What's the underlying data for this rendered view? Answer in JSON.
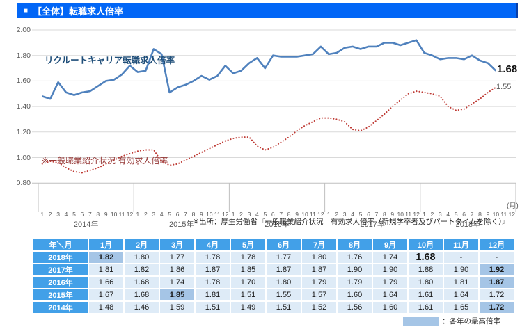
{
  "header": {
    "bullet": "■",
    "title": "【全体】転職求人倍率"
  },
  "chart": {
    "series1_label": "リクルートキャリア転職求人倍率",
    "series2_label": "※一般職業紹介状況 有効求人倍率",
    "end_label_recruit": "1.68",
    "end_label_mhlw": "1.55",
    "month_unit_label": "(月)",
    "source_note": "※出所：厚生労働省『一般職業紹介状況　有効求人倍率（新規学卒者及びパートタイムを除く）』"
  },
  "chart_data": {
    "type": "line",
    "title": "【全体】転職求人倍率",
    "ylim": [
      0.8,
      2.0
    ],
    "y_ticks": [
      "2.00",
      "1.80",
      "1.60",
      "1.40",
      "1.20",
      "1.00",
      "0.80"
    ],
    "grid": true,
    "years": [
      "2014年",
      "2015年",
      "2016年",
      "2017年",
      "2018年"
    ],
    "months": [
      "1",
      "2",
      "3",
      "4",
      "5",
      "6",
      "7",
      "8",
      "9",
      "10",
      "11",
      "12"
    ],
    "series": [
      {
        "name": "リクルートキャリア転職求人倍率",
        "color": "#4F81BD",
        "style": "solid",
        "values": [
          1.48,
          1.46,
          1.59,
          1.51,
          1.49,
          1.51,
          1.52,
          1.56,
          1.6,
          1.61,
          1.65,
          1.72,
          1.67,
          1.68,
          1.85,
          1.81,
          1.51,
          1.55,
          1.57,
          1.6,
          1.64,
          1.61,
          1.64,
          1.72,
          1.66,
          1.68,
          1.74,
          1.78,
          1.7,
          1.8,
          1.79,
          1.79,
          1.79,
          1.8,
          1.81,
          1.87,
          1.81,
          1.82,
          1.86,
          1.87,
          1.85,
          1.87,
          1.87,
          1.9,
          1.9,
          1.88,
          1.9,
          1.92,
          1.82,
          1.8,
          1.77,
          1.78,
          1.78,
          1.77,
          1.8,
          1.76,
          1.74,
          1.68
        ]
      },
      {
        "name": "一般職業紹介状況 有効求人倍率",
        "color": "#BE3A34",
        "style": "dotted",
        "values": [
          0.95,
          0.97,
          0.96,
          0.92,
          0.89,
          0.88,
          0.9,
          0.92,
          0.95,
          0.98,
          1.01,
          1.03,
          1.05,
          1.06,
          1.06,
          0.97,
          0.94,
          0.95,
          0.98,
          1.01,
          1.04,
          1.07,
          1.1,
          1.13,
          1.15,
          1.16,
          1.16,
          1.09,
          1.06,
          1.08,
          1.12,
          1.16,
          1.21,
          1.25,
          1.28,
          1.31,
          1.31,
          1.3,
          1.28,
          1.22,
          1.21,
          1.24,
          1.29,
          1.34,
          1.4,
          1.45,
          1.5,
          1.52,
          1.51,
          1.5,
          1.48,
          1.4,
          1.37,
          1.38,
          1.42,
          1.46,
          1.51,
          1.55
        ]
      }
    ],
    "annotations": {
      "last_recruit": "1.68",
      "last_mhlw": "1.55"
    }
  },
  "table": {
    "corner": "年＼月",
    "columns": [
      "1月",
      "2月",
      "3月",
      "4月",
      "5月",
      "6月",
      "7月",
      "8月",
      "9月",
      "10月",
      "11月",
      "12月"
    ],
    "rows": [
      {
        "year": "2018年",
        "values": [
          "1.82",
          "1.80",
          "1.77",
          "1.78",
          "1.78",
          "1.77",
          "1.80",
          "1.76",
          "1.74",
          "1.68",
          "-",
          "-"
        ],
        "highlight": 0,
        "big": 9
      },
      {
        "year": "2017年",
        "values": [
          "1.81",
          "1.82",
          "1.86",
          "1.87",
          "1.85",
          "1.87",
          "1.87",
          "1.90",
          "1.90",
          "1.88",
          "1.90",
          "1.92"
        ],
        "highlight": 11,
        "big": null
      },
      {
        "year": "2016年",
        "values": [
          "1.66",
          "1.68",
          "1.74",
          "1.78",
          "1.70",
          "1.80",
          "1.79",
          "1.79",
          "1.79",
          "1.80",
          "1.81",
          "1.87"
        ],
        "highlight": 11,
        "big": null
      },
      {
        "year": "2015年",
        "values": [
          "1.67",
          "1.68",
          "1.85",
          "1.81",
          "1.51",
          "1.55",
          "1.57",
          "1.60",
          "1.64",
          "1.61",
          "1.64",
          "1.72"
        ],
        "highlight": 2,
        "big": null
      },
      {
        "year": "2014年",
        "values": [
          "1.48",
          "1.46",
          "1.59",
          "1.51",
          "1.49",
          "1.51",
          "1.52",
          "1.56",
          "1.60",
          "1.61",
          "1.65",
          "1.72"
        ],
        "highlight": 11,
        "big": null
      }
    ]
  },
  "legend": {
    "label": "：各年の最高倍率",
    "swatch_color": "#A5C5E6"
  },
  "colors": {
    "title_bar": "#0266F6",
    "table_header": "#42A0E8",
    "cell_bg": "#DEEBF7",
    "highlight_bg": "#A5C5E6",
    "grid": "#D9D9D9",
    "axis": "#BFBFBF"
  }
}
